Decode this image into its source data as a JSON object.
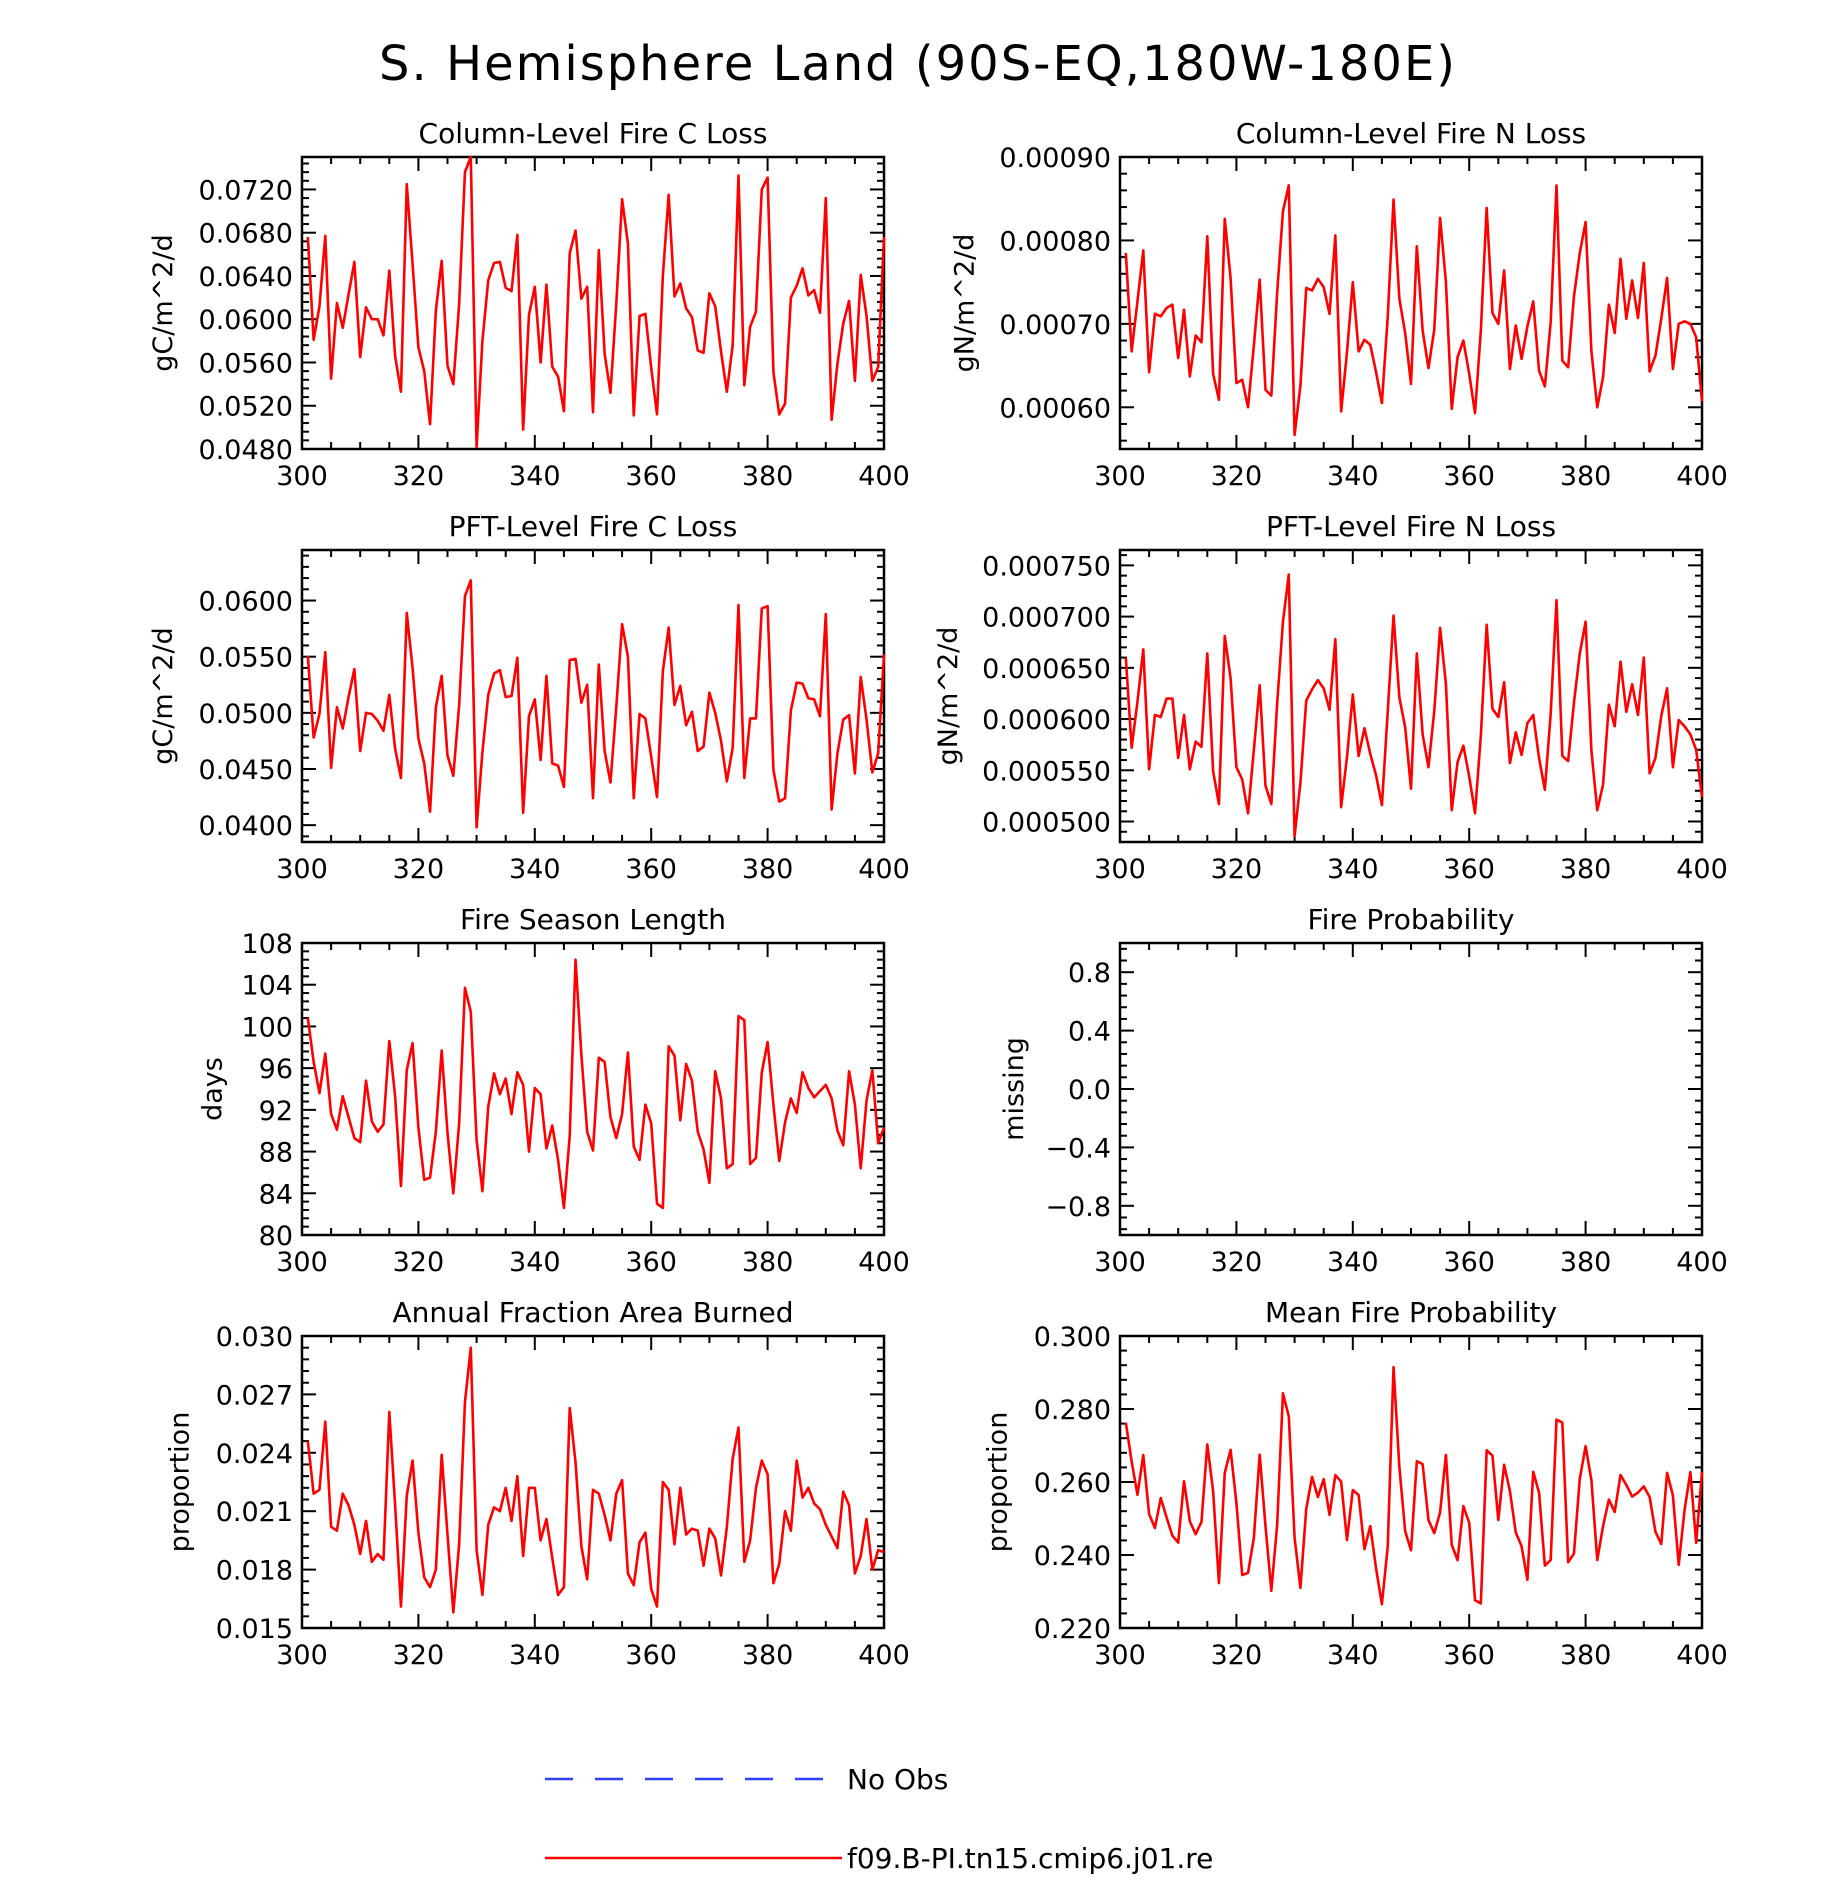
{
  "figure_title": "S. Hemisphere Land (90S-EQ,180W-180E)",
  "legend": [
    {
      "label": "No Obs",
      "color": "#3040ff",
      "dash": true
    },
    {
      "label": "f09.B-PI.tn15.cmip6.j01.re",
      "color": "#ff0000",
      "dash": false
    }
  ],
  "chart_data": [
    {
      "type": "line",
      "title": "Column-Level Fire C Loss",
      "ylabel": "gC/m^2/d",
      "xlim": [
        300,
        400
      ],
      "xticks": [
        300,
        320,
        340,
        360,
        380,
        400
      ],
      "ylim": [
        0.048,
        0.075
      ],
      "yticks": [
        "0.0480",
        "0.0520",
        "0.0560",
        "0.0600",
        "0.0640",
        "0.0680",
        "0.0720"
      ],
      "x_start": 301,
      "series": [
        {
          "color": "#ff0000",
          "values": [
            0.0676,
            0.0581,
            0.0612,
            0.0677,
            0.0545,
            0.0615,
            0.0592,
            0.0623,
            0.0653,
            0.0565,
            0.0611,
            0.06,
            0.06,
            0.0585,
            0.0645,
            0.0566,
            0.0533,
            0.0725,
            0.0651,
            0.0574,
            0.0552,
            0.0503,
            0.0608,
            0.0654,
            0.0557,
            0.054,
            0.0614,
            0.0736,
            0.075,
            0.0482,
            0.058,
            0.0636,
            0.0652,
            0.0653,
            0.0629,
            0.0626,
            0.0678,
            0.0498,
            0.0604,
            0.063,
            0.056,
            0.0632,
            0.0556,
            0.0547,
            0.0515,
            0.0661,
            0.0682,
            0.0619,
            0.063,
            0.0514,
            0.0664,
            0.0568,
            0.0532,
            0.0614,
            0.0711,
            0.067,
            0.0511,
            0.0603,
            0.0605,
            0.0555,
            0.0512,
            0.064,
            0.0715,
            0.0621,
            0.0633,
            0.061,
            0.0602,
            0.0571,
            0.0569,
            0.0624,
            0.0612,
            0.057,
            0.0533,
            0.0576,
            0.0733,
            0.0539,
            0.0593,
            0.0607,
            0.072,
            0.0731,
            0.0551,
            0.0512,
            0.0522,
            0.062,
            0.0631,
            0.0647,
            0.0622,
            0.0627,
            0.0606,
            0.0712,
            0.0507,
            0.0559,
            0.0596,
            0.0617,
            0.0543,
            0.0641,
            0.0603,
            0.0543,
            0.0556,
            0.0676
          ]
        }
      ]
    },
    {
      "type": "line",
      "title": "Column-Level Fire N Loss",
      "ylabel": "gN/m^2/d",
      "xlim": [
        300,
        400
      ],
      "xticks": [
        300,
        320,
        340,
        360,
        380,
        400
      ],
      "ylim": [
        0.00055,
        0.0009
      ],
      "yticks": [
        "0.00060",
        "0.00070",
        "0.00080",
        "0.00090"
      ],
      "x_start": 301,
      "series": [
        {
          "color": "#ff0000",
          "values": [
            0.000785,
            0.000667,
            0.000727,
            0.000788,
            0.000642,
            0.000712,
            0.000709,
            0.000719,
            0.000723,
            0.000659,
            0.000717,
            0.000637,
            0.000686,
            0.000678,
            0.000805,
            0.00064,
            0.000609,
            0.000826,
            0.000755,
            0.000629,
            0.000633,
            0.0006,
            0.000674,
            0.000753,
            0.000621,
            0.000614,
            0.000737,
            0.000835,
            0.000866,
            0.000567,
            0.000626,
            0.000743,
            0.00074,
            0.000754,
            0.000744,
            0.000712,
            0.000806,
            0.000595,
            0.000666,
            0.00075,
            0.000667,
            0.000681,
            0.000675,
            0.000642,
            0.000605,
            0.000708,
            0.000849,
            0.00073,
            0.000689,
            0.000628,
            0.000793,
            0.000692,
            0.000647,
            0.000693,
            0.000827,
            0.00075,
            0.000598,
            0.00066,
            0.00068,
            0.00064,
            0.000593,
            0.000692,
            0.000839,
            0.000713,
            0.0007,
            0.000764,
            0.000646,
            0.000698,
            0.000658,
            0.000697,
            0.000727,
            0.000644,
            0.000625,
            0.000702,
            0.000866,
            0.000656,
            0.000648,
            0.000733,
            0.000785,
            0.000822,
            0.000667,
            0.0006,
            0.000636,
            0.000723,
            0.000689,
            0.000778,
            0.000706,
            0.000752,
            0.000707,
            0.000773,
            0.000643,
            0.000662,
            0.000706,
            0.000755,
            0.000646,
            0.0007,
            0.000703,
            0.0007,
            0.000684,
            0.000607
          ]
        }
      ]
    },
    {
      "type": "line",
      "title": "PFT-Level Fire C Loss",
      "ylabel": "gC/m^2/d",
      "xlim": [
        300,
        400
      ],
      "xticks": [
        300,
        320,
        340,
        360,
        380,
        400
      ],
      "ylim": [
        0.0385,
        0.0645
      ],
      "yticks": [
        "0.0400",
        "0.0450",
        "0.0500",
        "0.0550",
        "0.0600"
      ],
      "x_start": 301,
      "series": [
        {
          "color": "#ff0000",
          "values": [
            0.0551,
            0.0478,
            0.0499,
            0.0554,
            0.0451,
            0.0505,
            0.0486,
            0.0514,
            0.0539,
            0.0466,
            0.05,
            0.0499,
            0.0493,
            0.0484,
            0.0516,
            0.0468,
            0.0442,
            0.0589,
            0.054,
            0.0477,
            0.0455,
            0.0412,
            0.0505,
            0.0533,
            0.0462,
            0.0444,
            0.0507,
            0.0604,
            0.0618,
            0.0398,
            0.0465,
            0.0516,
            0.0535,
            0.0538,
            0.0514,
            0.0515,
            0.0549,
            0.0411,
            0.0497,
            0.0512,
            0.0458,
            0.0533,
            0.0455,
            0.0453,
            0.0434,
            0.0547,
            0.0548,
            0.0509,
            0.0525,
            0.0424,
            0.0543,
            0.0466,
            0.0438,
            0.0505,
            0.0579,
            0.055,
            0.0424,
            0.0499,
            0.0495,
            0.0461,
            0.0425,
            0.0537,
            0.0576,
            0.0507,
            0.0524,
            0.0489,
            0.0501,
            0.0466,
            0.047,
            0.0518,
            0.05,
            0.0475,
            0.0439,
            0.0469,
            0.0596,
            0.0442,
            0.0495,
            0.0495,
            0.0593,
            0.0595,
            0.0449,
            0.0421,
            0.0424,
            0.0502,
            0.0527,
            0.0526,
            0.0513,
            0.0512,
            0.0497,
            0.0588,
            0.0414,
            0.0464,
            0.0494,
            0.0498,
            0.0446,
            0.0532,
            0.0494,
            0.0447,
            0.0464,
            0.0552
          ]
        }
      ]
    },
    {
      "type": "line",
      "title": "PFT-Level Fire N Loss",
      "ylabel": "gN/m^2/d",
      "xlim": [
        300,
        400
      ],
      "xticks": [
        300,
        320,
        340,
        360,
        380,
        400
      ],
      "ylim": [
        0.00048,
        0.000765
      ],
      "yticks": [
        "0.000500",
        "0.000550",
        "0.000600",
        "0.000650",
        "0.000700",
        "0.000750"
      ],
      "x_start": 301,
      "series": [
        {
          "color": "#ff0000",
          "values": [
            0.00066,
            0.000572,
            0.000617,
            0.000668,
            0.000551,
            0.000604,
            0.000602,
            0.00062,
            0.00062,
            0.000562,
            0.000604,
            0.000551,
            0.000578,
            0.000573,
            0.000664,
            0.000549,
            0.000517,
            0.000681,
            0.00064,
            0.000553,
            0.000541,
            0.000508,
            0.00057,
            0.000633,
            0.000535,
            0.000517,
            0.000615,
            0.000695,
            0.000741,
            0.000486,
            0.000538,
            0.000618,
            0.000629,
            0.000638,
            0.00063,
            0.000609,
            0.000678,
            0.000514,
            0.000563,
            0.000624,
            0.000564,
            0.000591,
            0.000566,
            0.000545,
            0.000516,
            0.000607,
            0.000701,
            0.000621,
            0.000592,
            0.000532,
            0.000664,
            0.000585,
            0.000553,
            0.000608,
            0.000689,
            0.000634,
            0.000511,
            0.000558,
            0.000574,
            0.000544,
            0.000508,
            0.000584,
            0.000692,
            0.00061,
            0.000602,
            0.000636,
            0.000557,
            0.000587,
            0.000565,
            0.000596,
            0.000604,
            0.000562,
            0.000531,
            0.000605,
            0.000716,
            0.000564,
            0.000559,
            0.000616,
            0.000664,
            0.000695,
            0.000569,
            0.000511,
            0.000536,
            0.000614,
            0.000593,
            0.000656,
            0.000607,
            0.000634,
            0.000604,
            0.00066,
            0.000547,
            0.000562,
            0.000603,
            0.00063,
            0.000553,
            0.000599,
            0.000593,
            0.000585,
            0.00057,
            0.000524
          ]
        }
      ]
    },
    {
      "type": "line",
      "title": "Fire Season Length",
      "ylabel": "days",
      "xlim": [
        300,
        400
      ],
      "xticks": [
        300,
        320,
        340,
        360,
        380,
        400
      ],
      "ylim": [
        80,
        108
      ],
      "yticks": [
        "80",
        "84",
        "88",
        "92",
        "96",
        "100",
        "104",
        "108"
      ],
      "x_start": 301,
      "series": [
        {
          "color": "#ff0000",
          "values": [
            100.8,
            96.6,
            93.6,
            97.4,
            91.6,
            90.1,
            93.3,
            91.3,
            89.3,
            88.9,
            94.8,
            90.9,
            89.9,
            90.6,
            98.6,
            93.3,
            84.7,
            95.8,
            98.4,
            90.3,
            85.3,
            85.5,
            89.9,
            97.7,
            89.8,
            84.0,
            90.7,
            103.7,
            101.4,
            89.1,
            84.2,
            92.3,
            95.5,
            93.5,
            95.0,
            91.6,
            95.6,
            94.4,
            88.0,
            94.1,
            93.5,
            88.3,
            90.5,
            87.2,
            82.6,
            89.5,
            106.4,
            97.3,
            89.9,
            88.1,
            97.0,
            96.6,
            91.3,
            89.3,
            91.6,
            97.5,
            88.5,
            87.2,
            92.5,
            90.7,
            83.0,
            82.6,
            98.1,
            97.2,
            91.0,
            96.4,
            94.8,
            89.9,
            88.2,
            85.0,
            95.7,
            93.1,
            86.4,
            86.8,
            101.0,
            100.6,
            86.8,
            87.4,
            95.6,
            98.5,
            92.5,
            87.1,
            90.8,
            93.1,
            91.7,
            95.6,
            94.1,
            93.2,
            93.8,
            94.4,
            93.1,
            90.0,
            88.6,
            95.7,
            92.5,
            86.4,
            92.9,
            95.8,
            88.8,
            90.3
          ]
        }
      ]
    },
    {
      "type": "line",
      "title": "Fire Probability",
      "ylabel": "missing",
      "xlim": [
        300,
        400
      ],
      "xticks": [
        300,
        320,
        340,
        360,
        380,
        400
      ],
      "ylim": [
        -1,
        1
      ],
      "yticks": [
        "-0.8",
        "-0.4",
        "0.0",
        "0.4",
        "0.8"
      ],
      "x_start": 301,
      "series": []
    },
    {
      "type": "line",
      "title": "Annual Fraction Area Burned",
      "ylabel": "proportion",
      "xlim": [
        300,
        400
      ],
      "xticks": [
        300,
        320,
        340,
        360,
        380,
        400
      ],
      "ylim": [
        0.015,
        0.03
      ],
      "yticks": [
        "0.015",
        "0.018",
        "0.021",
        "0.024",
        "0.027",
        "0.030"
      ],
      "x_start": 301,
      "series": [
        {
          "color": "#ff0000",
          "values": [
            0.0246,
            0.0219,
            0.0221,
            0.0256,
            0.0202,
            0.02,
            0.0219,
            0.0213,
            0.0203,
            0.0188,
            0.0205,
            0.0184,
            0.0188,
            0.0185,
            0.0261,
            0.0213,
            0.0161,
            0.0218,
            0.0236,
            0.0199,
            0.0176,
            0.0171,
            0.018,
            0.0239,
            0.0198,
            0.0158,
            0.0193,
            0.0266,
            0.0294,
            0.019,
            0.0167,
            0.0203,
            0.0212,
            0.021,
            0.0222,
            0.0205,
            0.0228,
            0.0187,
            0.0222,
            0.0222,
            0.0195,
            0.0206,
            0.0186,
            0.0167,
            0.0171,
            0.0263,
            0.0235,
            0.0192,
            0.0175,
            0.0221,
            0.0219,
            0.0208,
            0.0195,
            0.0219,
            0.0226,
            0.0178,
            0.0172,
            0.0194,
            0.0199,
            0.017,
            0.0161,
            0.0225,
            0.0221,
            0.0193,
            0.0222,
            0.0198,
            0.0201,
            0.02,
            0.0182,
            0.0201,
            0.0196,
            0.0177,
            0.0202,
            0.0237,
            0.0253,
            0.0184,
            0.0195,
            0.0222,
            0.0236,
            0.0229,
            0.0173,
            0.0183,
            0.021,
            0.02,
            0.0236,
            0.0217,
            0.0222,
            0.0214,
            0.0211,
            0.0203,
            0.0197,
            0.0191,
            0.022,
            0.0213,
            0.0178,
            0.0187,
            0.0206,
            0.018,
            0.019,
            0.0189
          ]
        }
      ]
    },
    {
      "type": "line",
      "title": "Mean Fire Probability",
      "ylabel": "proportion",
      "xlim": [
        300,
        400
      ],
      "xticks": [
        300,
        320,
        340,
        360,
        380,
        400
      ],
      "ylim": [
        0.22,
        0.3
      ],
      "yticks": [
        "0.220",
        "0.240",
        "0.260",
        "0.280",
        "0.300"
      ],
      "x_start": 301,
      "series": [
        {
          "color": "#ff0000",
          "values": [
            0.2763,
            0.2656,
            0.2565,
            0.2674,
            0.2512,
            0.2474,
            0.2556,
            0.2503,
            0.2453,
            0.2434,
            0.2602,
            0.2492,
            0.2457,
            0.2491,
            0.2703,
            0.2575,
            0.2323,
            0.2625,
            0.2688,
            0.2543,
            0.2345,
            0.2351,
            0.2447,
            0.2675,
            0.2479,
            0.2302,
            0.2482,
            0.2843,
            0.278,
            0.2447,
            0.231,
            0.2526,
            0.2614,
            0.2559,
            0.2608,
            0.251,
            0.2619,
            0.2601,
            0.2441,
            0.2578,
            0.2564,
            0.2416,
            0.2479,
            0.2363,
            0.2265,
            0.2423,
            0.2915,
            0.2641,
            0.2465,
            0.2413,
            0.2657,
            0.2649,
            0.2496,
            0.246,
            0.2517,
            0.2674,
            0.2428,
            0.2386,
            0.2534,
            0.2488,
            0.2276,
            0.2267,
            0.2687,
            0.2672,
            0.2496,
            0.2647,
            0.2575,
            0.2462,
            0.2424,
            0.2332,
            0.2628,
            0.2571,
            0.2371,
            0.2386,
            0.2771,
            0.2763,
            0.238,
            0.2404,
            0.2609,
            0.2698,
            0.2605,
            0.2386,
            0.2479,
            0.2552,
            0.2518,
            0.2619,
            0.2592,
            0.256,
            0.2571,
            0.2588,
            0.2559,
            0.2464,
            0.243,
            0.2625,
            0.2563,
            0.2373,
            0.2523,
            0.2627,
            0.2433,
            0.2628
          ]
        }
      ]
    }
  ]
}
